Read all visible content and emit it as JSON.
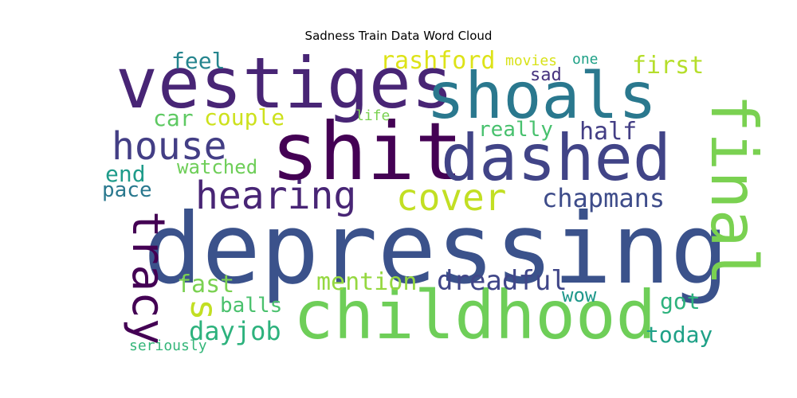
{
  "chart_data": {
    "type": "wordcloud",
    "title": "Sadness Train Data Word Cloud",
    "colormap": "viridis",
    "background": "#ffffff",
    "words": [
      {
        "text": "depressing",
        "weight": 1.0,
        "color": "#3b528b"
      },
      {
        "text": "shit",
        "weight": 0.78,
        "color": "#440154"
      },
      {
        "text": "vestiges",
        "weight": 0.74,
        "color": "#482575"
      },
      {
        "text": "childhood",
        "weight": 0.71,
        "color": "#6ece58"
      },
      {
        "text": "shoals",
        "weight": 0.68,
        "color": "#2a788e"
      },
      {
        "text": "dashed",
        "weight": 0.68,
        "color": "#414487"
      },
      {
        "text": "final",
        "weight": 0.62,
        "color": "#7ad151"
      },
      {
        "text": "tracy",
        "weight": 0.46,
        "color": "#440154"
      },
      {
        "text": "hearing",
        "weight": 0.44,
        "color": "#482575"
      },
      {
        "text": "house",
        "weight": 0.42,
        "color": "#433e85"
      },
      {
        "text": "s",
        "weight": 0.4,
        "color": "#c2df23"
      },
      {
        "text": "cover",
        "weight": 0.4,
        "color": "#c2df23"
      },
      {
        "text": "dreadful",
        "weight": 0.3,
        "color": "#404688"
      },
      {
        "text": "chapmans",
        "weight": 0.28,
        "color": "#3e4c8a"
      },
      {
        "text": "dayjob",
        "weight": 0.28,
        "color": "#2db27d"
      },
      {
        "text": "first",
        "weight": 0.26,
        "color": "#b5de2b"
      },
      {
        "text": "rashford",
        "weight": 0.26,
        "color": "#dde318"
      },
      {
        "text": "half",
        "weight": 0.25,
        "color": "#433e85"
      },
      {
        "text": "mention",
        "weight": 0.25,
        "color": "#95d840"
      },
      {
        "text": "fast",
        "weight": 0.25,
        "color": "#7ad151"
      },
      {
        "text": "couple",
        "weight": 0.23,
        "color": "#cde11d"
      },
      {
        "text": "car",
        "weight": 0.23,
        "color": "#5ec962"
      },
      {
        "text": "feel",
        "weight": 0.23,
        "color": "#25858e"
      },
      {
        "text": "end",
        "weight": 0.23,
        "color": "#1e9b8a"
      },
      {
        "text": "got",
        "weight": 0.23,
        "color": "#2db27d"
      },
      {
        "text": "today",
        "weight": 0.23,
        "color": "#1fa187"
      },
      {
        "text": "pace",
        "weight": 0.21,
        "color": "#2a788e"
      },
      {
        "text": "really",
        "weight": 0.21,
        "color": "#48c16e"
      },
      {
        "text": "balls",
        "weight": 0.21,
        "color": "#4ac16d"
      },
      {
        "text": "wow",
        "weight": 0.2,
        "color": "#1f988b"
      },
      {
        "text": "watched",
        "weight": 0.2,
        "color": "#6ece58"
      },
      {
        "text": "sad",
        "weight": 0.18,
        "color": "#46337e"
      },
      {
        "text": "seriously",
        "weight": 0.14,
        "color": "#34b679"
      },
      {
        "text": "movies",
        "weight": 0.13,
        "color": "#d8e219"
      },
      {
        "text": "one",
        "weight": 0.13,
        "color": "#1fa187"
      },
      {
        "text": "life",
        "weight": 0.13,
        "color": "#7ad151"
      }
    ]
  }
}
